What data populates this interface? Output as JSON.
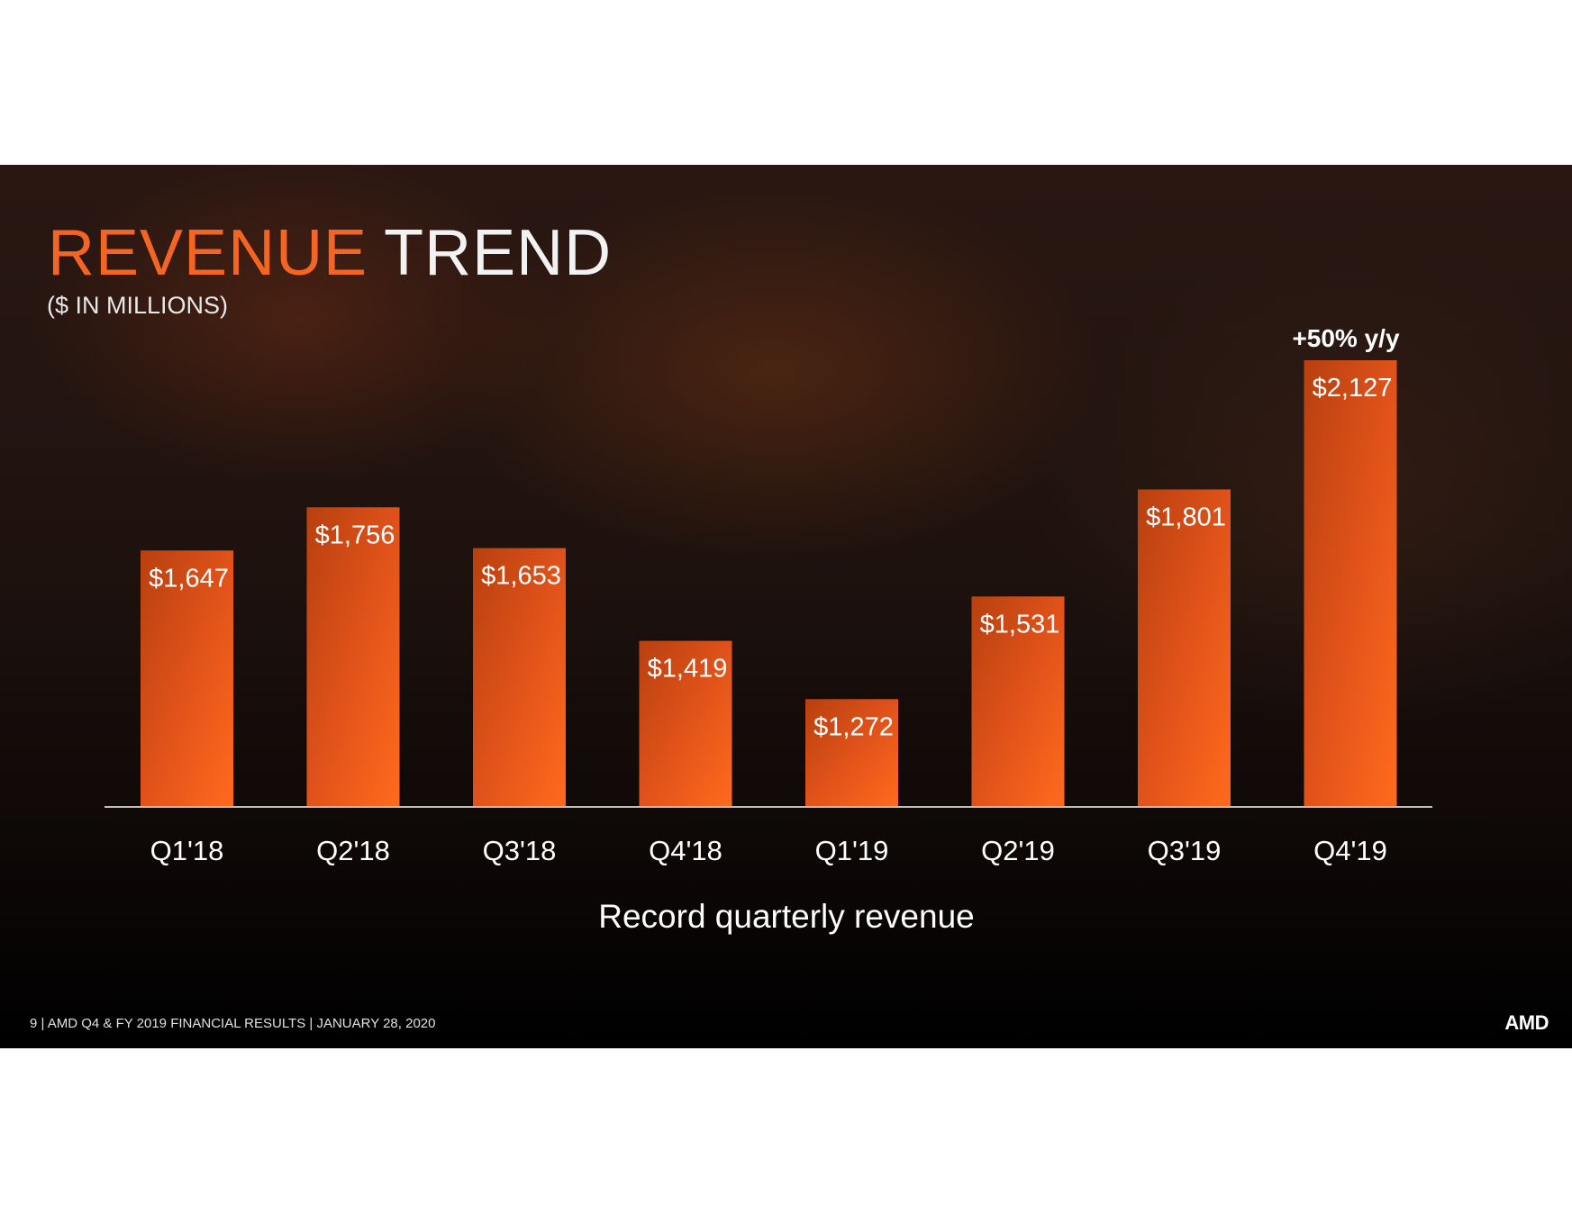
{
  "slide": {
    "title_accent": "REVENUE",
    "title_rest": "TREND",
    "subtitle": "($ IN MILLIONS)",
    "footer": "9  |  AMD Q4 & FY 2019 FINANCIAL RESULTS  |  JANUARY 28, 2020",
    "logo": "AMD"
  },
  "chart_data": {
    "type": "bar",
    "title": "REVENUE TREND",
    "subtitle": "($ IN MILLIONS)",
    "categories": [
      "Q1'18",
      "Q2'18",
      "Q3'18",
      "Q4'18",
      "Q1'19",
      "Q2'19",
      "Q3'19",
      "Q4'19"
    ],
    "values": [
      1647,
      1756,
      1653,
      1419,
      1272,
      1531,
      1801,
      2127
    ],
    "data_labels": [
      "$1,647",
      "$1,756",
      "$1,653",
      "$1,419",
      "$1,272",
      "$1,531",
      "$1,801",
      "$2,127"
    ],
    "annotation": "+50% y/y",
    "xlabel": "Record quarterly revenue",
    "ylabel": "",
    "ylim": [
      1000,
      2200
    ],
    "grid": false,
    "bar_color": "#f26522"
  }
}
